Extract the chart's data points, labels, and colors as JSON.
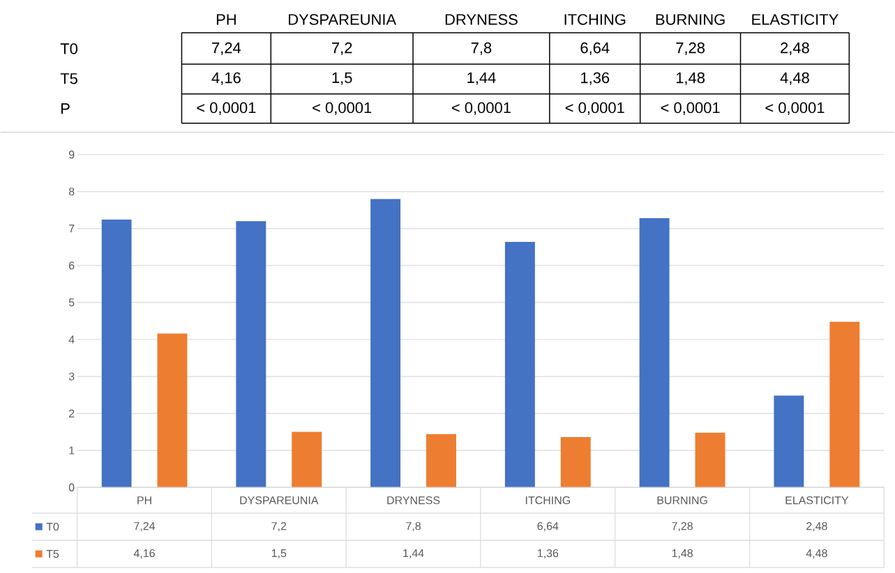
{
  "chart_data": {
    "type": "bar",
    "categories": [
      "PH",
      "DYSPAREUNIA",
      "DRYNESS",
      "ITCHING",
      "BURNING",
      "ELASTICITY"
    ],
    "series": [
      {
        "name": "T0",
        "color": "#4472c4",
        "values": [
          7.24,
          7.2,
          7.8,
          6.64,
          7.28,
          2.48
        ],
        "value_labels": [
          "7,24",
          "7,2",
          "7,8",
          "6,64",
          "7,28",
          "2,48"
        ]
      },
      {
        "name": "T5",
        "color": "#ed7d31",
        "values": [
          4.16,
          1.5,
          1.44,
          1.36,
          1.48,
          4.48
        ],
        "value_labels": [
          "4,16",
          "1,5",
          "1,44",
          "1,36",
          "1,48",
          "4,48"
        ]
      }
    ],
    "ylim": [
      0,
      9
    ],
    "yticks": [
      0,
      1,
      2,
      3,
      4,
      5,
      6,
      7,
      8,
      9
    ],
    "grid": "y",
    "legend": "bottom",
    "annotations": [
      "P",
      "< 0,0001",
      "< 0,0001",
      "< 0,0001",
      "< 0,0001",
      "< 0,0001",
      "< 0,0001"
    ]
  }
}
